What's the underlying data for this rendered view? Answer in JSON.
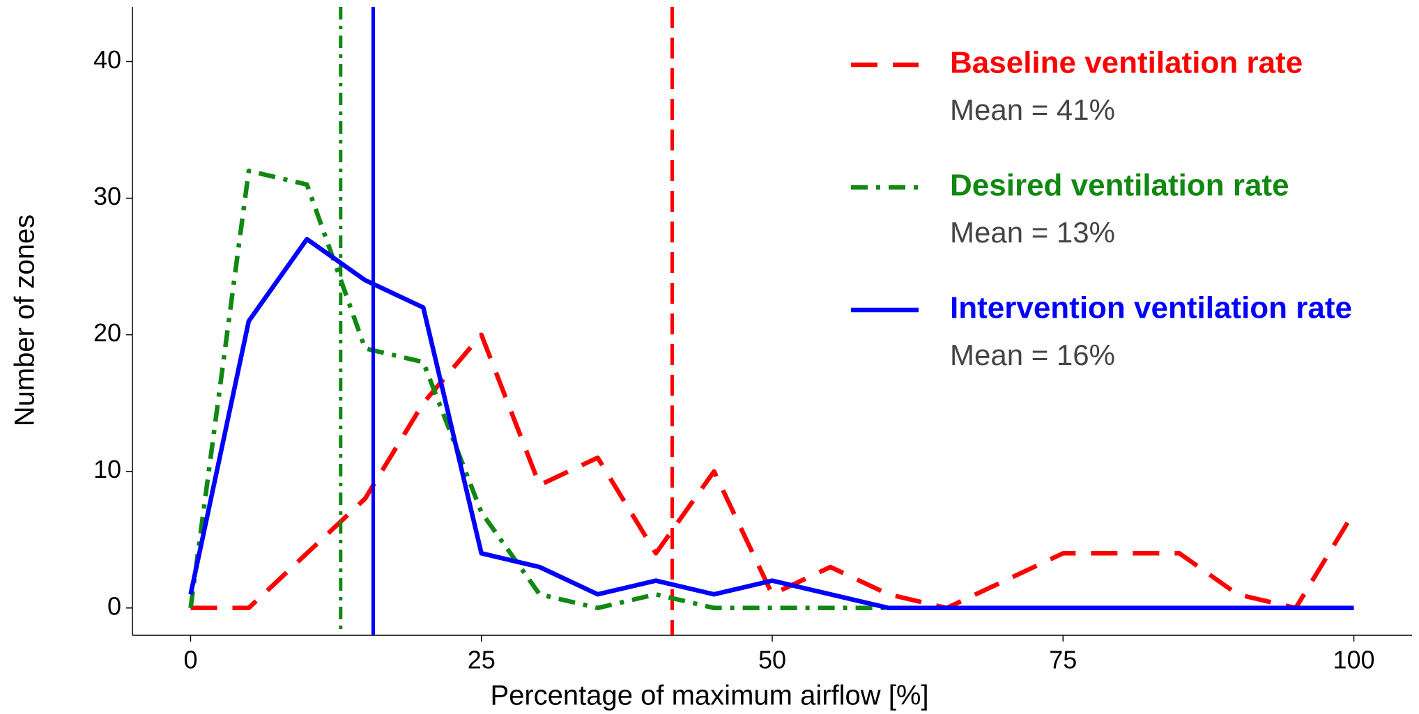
{
  "chart_data": {
    "type": "line",
    "x_label": "Percentage of maximum airflow [%]",
    "y_label": "Number of zones",
    "x": [
      0,
      5,
      10,
      15,
      20,
      25,
      30,
      35,
      40,
      45,
      50,
      55,
      60,
      65,
      70,
      75,
      80,
      85,
      90,
      95,
      100
    ],
    "series": [
      {
        "name": "Baseline ventilation rate",
        "color": "#ff0000",
        "dash": "long-dash",
        "mean": 41.4,
        "mean_label": "Mean = 41%",
        "values": [
          0,
          0,
          4,
          8,
          15,
          20,
          9,
          11,
          4,
          10,
          1,
          3,
          1,
          0,
          2,
          4,
          4,
          4,
          1,
          0,
          7
        ]
      },
      {
        "name": "Desired ventilation rate",
        "color": "#118811",
        "dash": "dot-dash",
        "mean": 12.9,
        "mean_label": "Mean = 13%",
        "values": [
          0,
          32,
          31,
          19,
          18,
          7,
          1,
          0,
          1,
          0,
          0,
          0,
          0,
          0,
          0,
          0,
          0,
          0,
          0,
          0,
          0
        ]
      },
      {
        "name": "Intervention ventilation rate",
        "color": "#0000ff",
        "dash": "solid",
        "mean": 15.7,
        "mean_label": "Mean = 16%",
        "values": [
          1,
          21,
          27,
          24,
          22,
          4,
          3,
          1,
          2,
          1,
          2,
          1,
          0,
          0,
          0,
          0,
          0,
          0,
          0,
          0,
          0
        ]
      }
    ],
    "xlim": [
      -5,
      105
    ],
    "xticks": [
      0,
      25,
      50,
      75,
      100
    ],
    "ylim": [
      -2,
      44
    ],
    "yticks": [
      0,
      10,
      20,
      30,
      40
    ],
    "grid": false,
    "legend": "top-right"
  }
}
